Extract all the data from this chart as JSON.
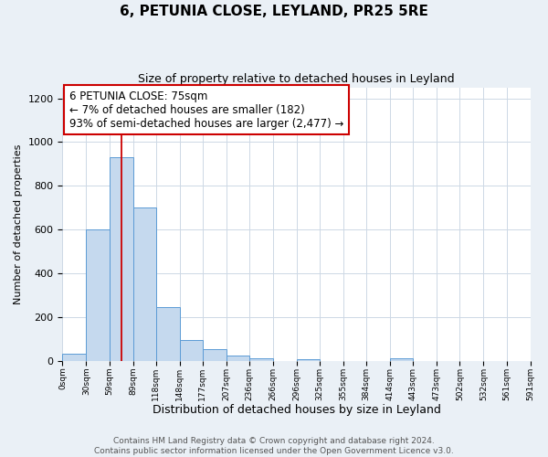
{
  "title": "6, PETUNIA CLOSE, LEYLAND, PR25 5RE",
  "subtitle": "Size of property relative to detached houses in Leyland",
  "xlabel": "Distribution of detached houses by size in Leyland",
  "ylabel": "Number of detached properties",
  "bin_edges": [
    0,
    30,
    59,
    89,
    118,
    148,
    177,
    207,
    236,
    266,
    296,
    325,
    355,
    384,
    414,
    443,
    473,
    502,
    532,
    561,
    591
  ],
  "bar_heights": [
    35,
    600,
    930,
    700,
    245,
    95,
    55,
    25,
    15,
    0,
    10,
    0,
    0,
    0,
    15,
    0,
    0,
    0,
    0,
    0
  ],
  "bar_color": "#c5d9ee",
  "bar_edge_color": "#5b9bd5",
  "bar_linewidth": 0.7,
  "red_line_x": 75,
  "red_line_color": "#cc0000",
  "annotation_text": "6 PETUNIA CLOSE: 75sqm\n← 7% of detached houses are smaller (182)\n93% of semi-detached houses are larger (2,477) →",
  "ylim": [
    0,
    1250
  ],
  "yticks": [
    0,
    200,
    400,
    600,
    800,
    1000,
    1200
  ],
  "tick_labels": [
    "0sqm",
    "30sqm",
    "59sqm",
    "89sqm",
    "118sqm",
    "148sqm",
    "177sqm",
    "207sqm",
    "236sqm",
    "266sqm",
    "296sqm",
    "325sqm",
    "355sqm",
    "384sqm",
    "414sqm",
    "443sqm",
    "473sqm",
    "502sqm",
    "532sqm",
    "561sqm",
    "591sqm"
  ],
  "footnote": "Contains HM Land Registry data © Crown copyright and database right 2024.\nContains public sector information licensed under the Open Government Licence v3.0.",
  "background_color": "#eaf0f6",
  "plot_bg_color": "#ffffff",
  "title_fontsize": 11,
  "subtitle_fontsize": 9,
  "xlabel_fontsize": 9,
  "ylabel_fontsize": 8,
  "annotation_fontsize": 8.5,
  "footnote_fontsize": 6.5,
  "grid_color": "#cdd8e5"
}
